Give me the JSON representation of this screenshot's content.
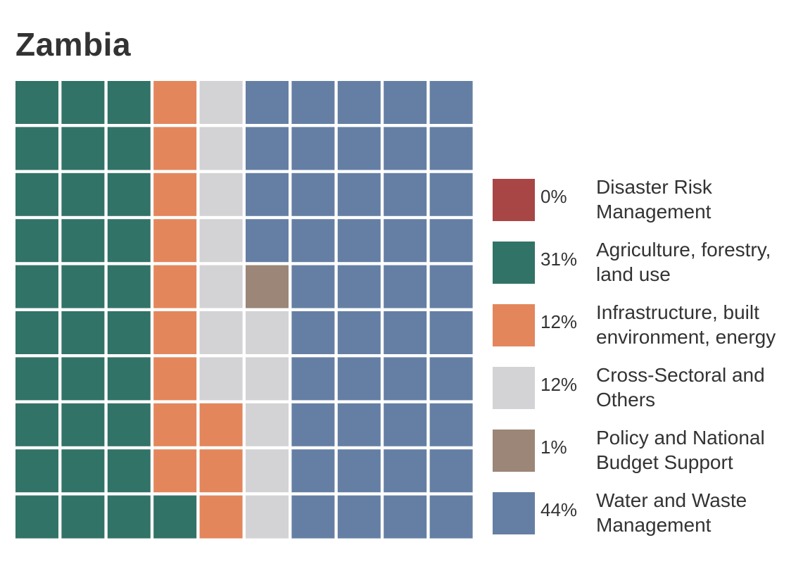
{
  "chart_data": {
    "type": "waffle",
    "title": "Zambia",
    "grid": {
      "rows": 10,
      "cols": 10
    },
    "categories": [
      {
        "name": "Disaster Risk Management",
        "percent_label": "0%",
        "value": 0,
        "color": "#a84646"
      },
      {
        "name": "Agriculture, forestry, land use",
        "percent_label": "31%",
        "value": 31,
        "color": "#327367"
      },
      {
        "name": "Infrastructure, built environment, energy",
        "percent_label": "12%",
        "value": 12,
        "color": "#e3865c"
      },
      {
        "name": "Cross-Sectoral and Others",
        "percent_label": "12%",
        "value": 12,
        "color": "#d3d3d5"
      },
      {
        "name": "Policy and National Budget Support",
        "percent_label": "1%",
        "value": 1,
        "color": "#9b8677"
      },
      {
        "name": "Water and Waste Management",
        "percent_label": "44%",
        "value": 44,
        "color": "#657fa4"
      }
    ],
    "fill_order": "column-major, bottom-to-top then left-to-right",
    "legend_position": "right"
  }
}
